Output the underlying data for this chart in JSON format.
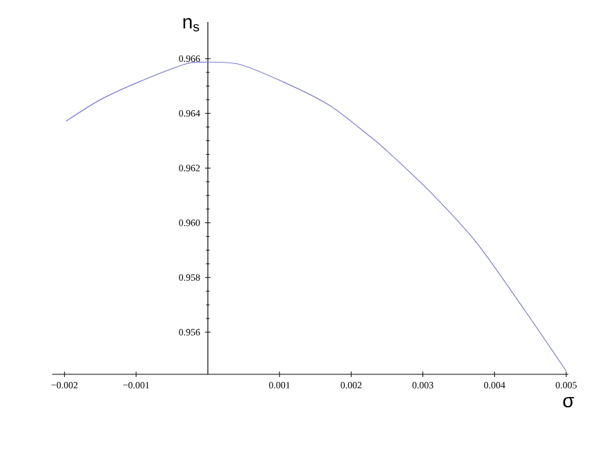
{
  "chart_data": {
    "type": "line",
    "xlabel": "σ",
    "ylabel": "n$_{s}$",
    "x": [
      -0.00198,
      -0.0015,
      -0.00098,
      -0.00034,
      -0.0001,
      0.00043,
      0.00107,
      0.0017,
      0.00228,
      0.00247,
      0.00311,
      0.00375,
      0.00439,
      0.005
    ],
    "series": [
      {
        "color": "#7b7bd0",
        "values": [
          0.96371,
          0.9645,
          0.96513,
          0.96578,
          0.96587,
          0.9658,
          0.96513,
          0.96429,
          0.96312,
          0.9627,
          0.96111,
          0.95927,
          0.95692,
          0.95458
        ]
      }
    ],
    "xlim": [
      -0.00217,
      0.00503
    ],
    "ylim": [
      0.95446,
      0.96734
    ],
    "xticks": [
      {
        "value": -0.002,
        "label": "−0.002"
      },
      {
        "value": -0.001,
        "label": "−0.001"
      },
      0.001,
      0.002,
      0.003,
      0.004,
      0.005
    ],
    "yticks": [
      0.956,
      0.958,
      {
        "value": 0.96,
        "label": "0.960"
      },
      0.962,
      0.964,
      0.966
    ],
    "grid": false,
    "marker": "none",
    "line_style": "solid"
  }
}
